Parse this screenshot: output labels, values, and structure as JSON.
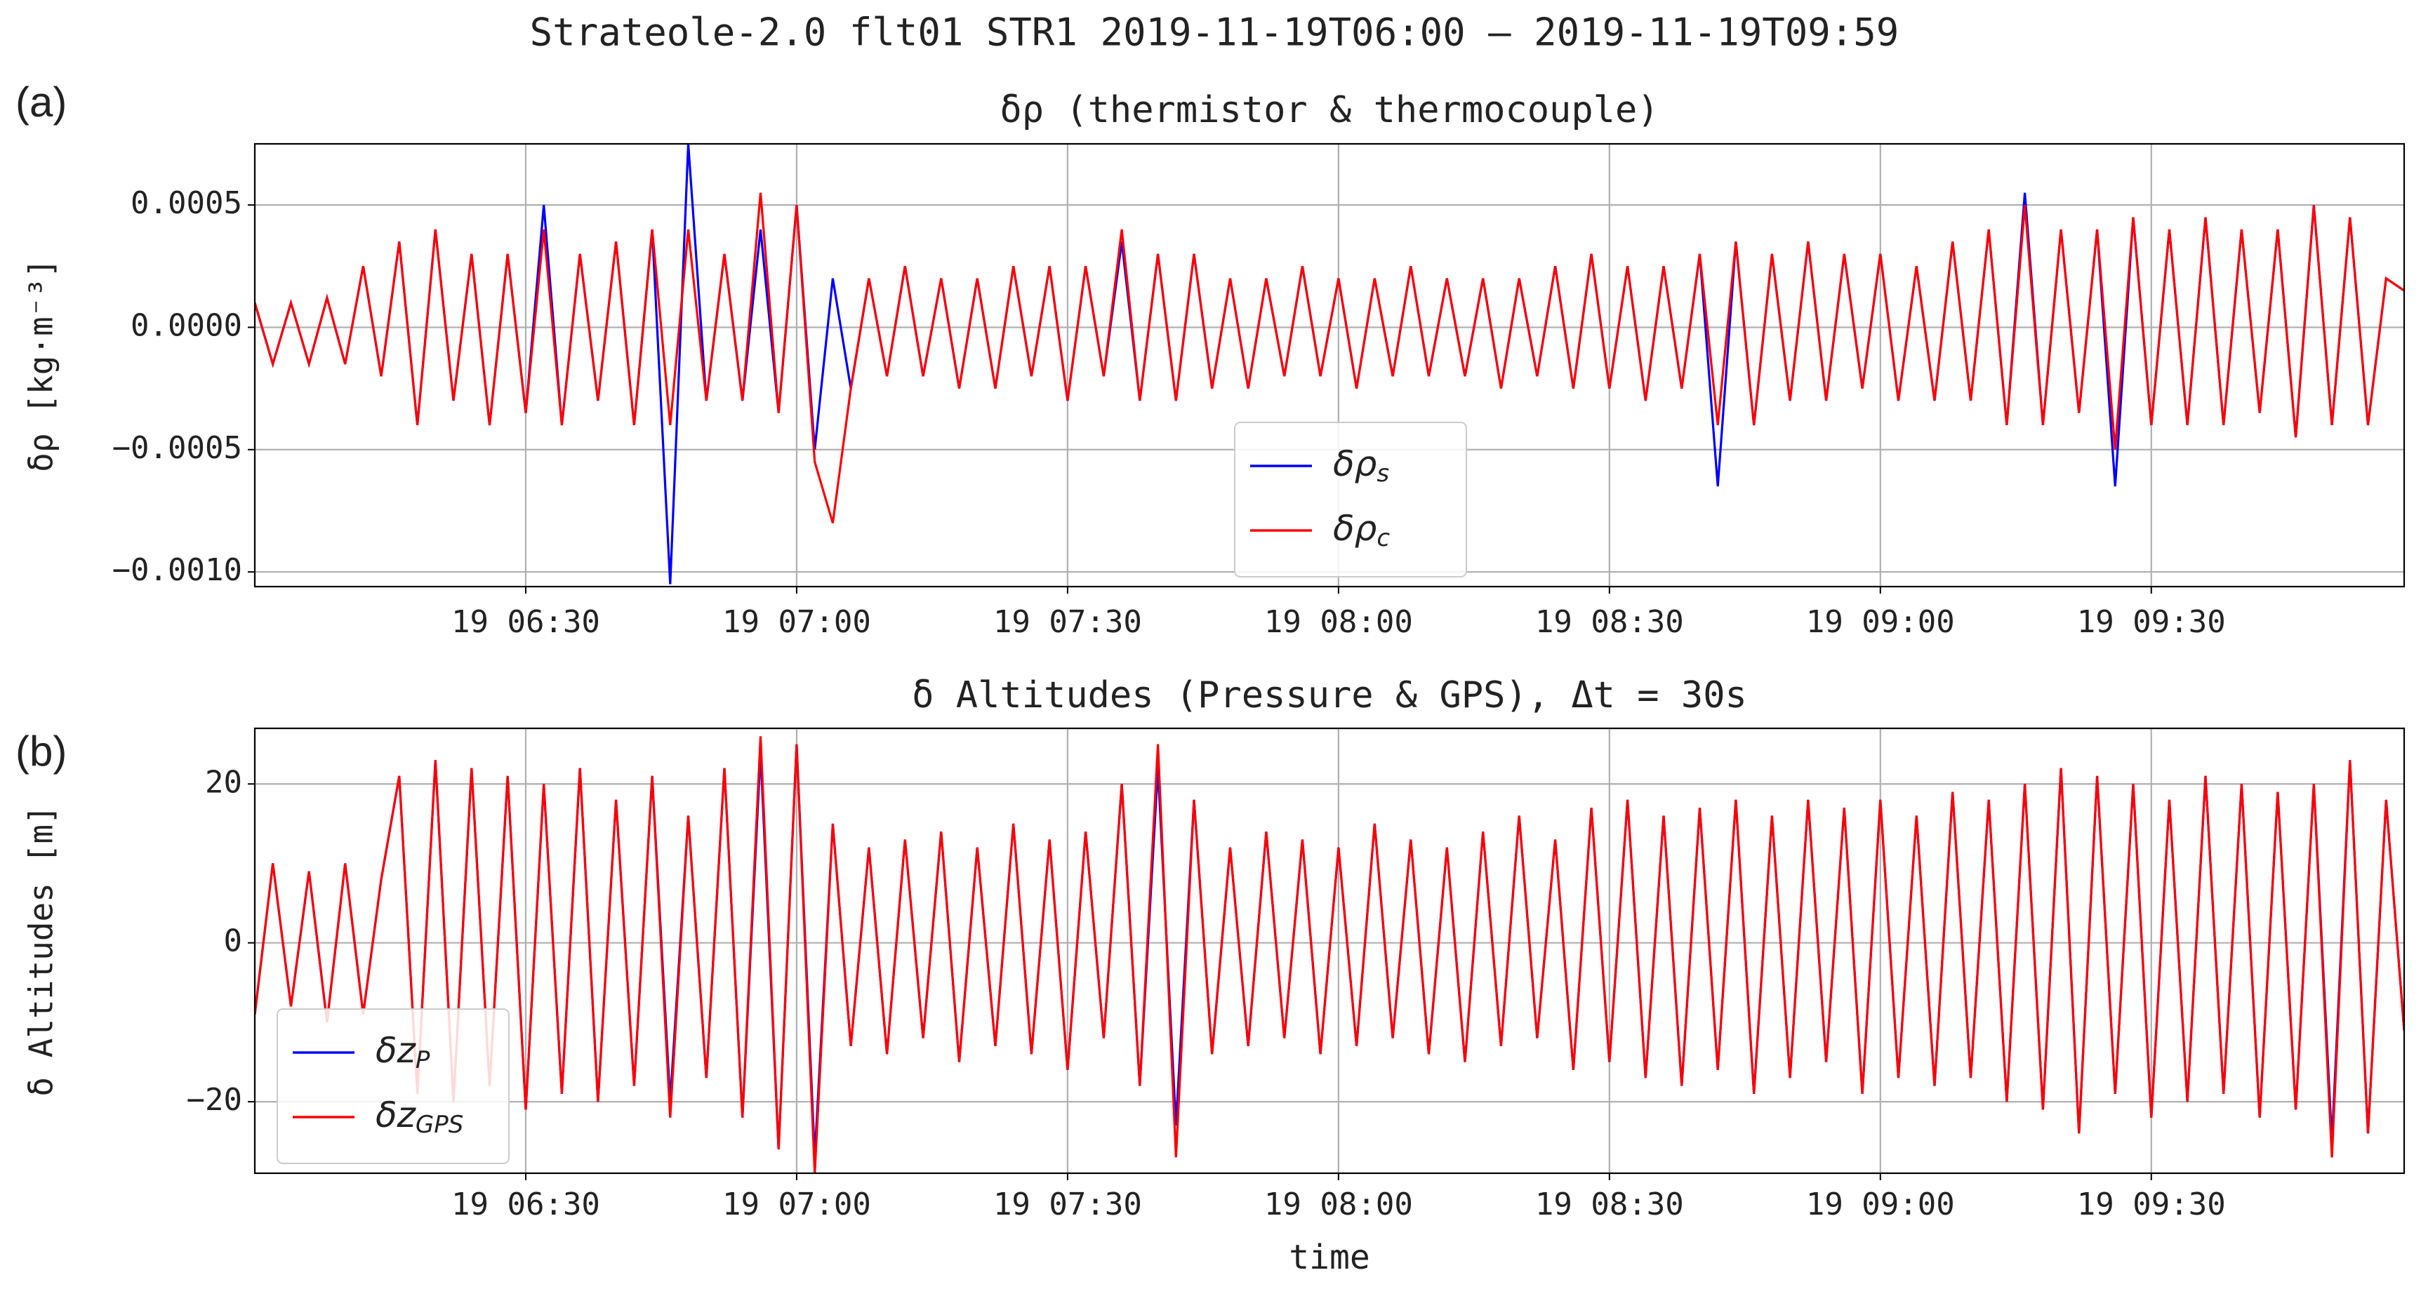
{
  "title": "Strateole-2.0 flt01 STR1  2019-11-19T06:00 – 2019-11-19T09:59",
  "chart_data": [
    {
      "type": "line",
      "panel_label": "(a)",
      "title": "δρ (thermistor & thermocouple)",
      "y_label": "δρ [kg·m⁻³]",
      "grid": true,
      "legend": "lower center",
      "xlim": [
        0,
        238
      ],
      "xticks": [
        {
          "value": 30,
          "label": "19 06:30"
        },
        {
          "value": 60,
          "label": "19 07:00"
        },
        {
          "value": 90,
          "label": "19 07:30"
        },
        {
          "value": 120,
          "label": "19 08:00"
        },
        {
          "value": 150,
          "label": "19 08:30"
        },
        {
          "value": 180,
          "label": "19 09:00"
        },
        {
          "value": 210,
          "label": "19 09:30"
        }
      ],
      "ylim": [
        -0.00106,
        0.00075
      ],
      "yticks": [
        {
          "value": -0.001,
          "label": "−0.0010"
        },
        {
          "value": -0.0005,
          "label": "−0.0005"
        },
        {
          "value": 0,
          "label": "0.0000"
        },
        {
          "value": 0.0005,
          "label": "0.0005"
        }
      ],
      "x": [
        0,
        2,
        4,
        6,
        8,
        10,
        12,
        14,
        16,
        18,
        20,
        22,
        24,
        26,
        28,
        30,
        32,
        34,
        36,
        38,
        40,
        42,
        44,
        46,
        48,
        50,
        52,
        54,
        56,
        58,
        60,
        62,
        64,
        66,
        68,
        70,
        72,
        74,
        76,
        78,
        80,
        82,
        84,
        86,
        88,
        90,
        92,
        94,
        96,
        98,
        100,
        102,
        104,
        106,
        108,
        110,
        112,
        114,
        116,
        118,
        120,
        122,
        124,
        126,
        128,
        130,
        132,
        134,
        136,
        138,
        140,
        142,
        144,
        146,
        148,
        150,
        152,
        154,
        156,
        158,
        160,
        162,
        164,
        166,
        168,
        170,
        172,
        174,
        176,
        178,
        180,
        182,
        184,
        186,
        188,
        190,
        192,
        194,
        196,
        198,
        200,
        202,
        204,
        206,
        208,
        210,
        212,
        214,
        216,
        218,
        220,
        222,
        224,
        226,
        228,
        230,
        232,
        234,
        236,
        238
      ],
      "series": [
        {
          "name": "δρ_s",
          "color": "#0000ff",
          "values": [
            0.0001,
            -0.00015,
            0.0001,
            -0.00015,
            0.00012,
            -0.00015,
            0.00025,
            -0.0002,
            0.00035,
            -0.0004,
            0.0004,
            -0.0003,
            0.0003,
            -0.0004,
            0.0003,
            -0.00035,
            0.0005,
            -0.0004,
            0.0003,
            -0.0003,
            0.00035,
            -0.0004,
            0.0004,
            -0.00105,
            0.00075,
            -0.0003,
            0.0003,
            -0.0003,
            0.0004,
            -0.00035,
            0.0005,
            -0.0005,
            0.0002,
            -0.00025,
            0.0002,
            -0.0002,
            0.00025,
            -0.0002,
            0.0002,
            -0.00025,
            0.0002,
            -0.00025,
            0.00025,
            -0.0002,
            0.00025,
            -0.0003,
            0.00025,
            -0.0002,
            0.00035,
            -0.0003,
            0.0003,
            -0.0003,
            0.0003,
            -0.00025,
            0.0002,
            -0.00025,
            0.0002,
            -0.0002,
            0.00025,
            -0.0002,
            0.0002,
            -0.00025,
            0.0002,
            -0.0002,
            0.00025,
            -0.0002,
            0.0002,
            -0.0002,
            0.0002,
            -0.00025,
            0.0002,
            -0.0002,
            0.00025,
            -0.00025,
            0.0003,
            -0.00025,
            0.00025,
            -0.0003,
            0.00025,
            -0.00025,
            0.0003,
            -0.00065,
            0.00035,
            -0.0004,
            0.0003,
            -0.0003,
            0.00035,
            -0.0003,
            0.0003,
            -0.00025,
            0.0003,
            -0.0003,
            0.00025,
            -0.0003,
            0.00035,
            -0.0003,
            0.0004,
            -0.0004,
            0.00055,
            -0.0004,
            0.0004,
            -0.00035,
            0.0004,
            -0.00065,
            0.00045,
            -0.0004,
            0.0004,
            -0.0004,
            0.00045,
            -0.0004,
            0.0004,
            -0.00035,
            0.0004,
            -0.00045,
            0.0005,
            -0.0004,
            0.00045,
            -0.0004,
            0.0002,
            0.00015
          ]
        },
        {
          "name": "δρ_c",
          "color": "#ff0000",
          "values": [
            0.0001,
            -0.00015,
            0.0001,
            -0.00015,
            0.00012,
            -0.00015,
            0.00025,
            -0.0002,
            0.00035,
            -0.0004,
            0.0004,
            -0.0003,
            0.0003,
            -0.0004,
            0.0003,
            -0.00035,
            0.0004,
            -0.0004,
            0.0003,
            -0.0003,
            0.00035,
            -0.0004,
            0.0004,
            -0.0004,
            0.0004,
            -0.0003,
            0.0003,
            -0.0003,
            0.00055,
            -0.00035,
            0.0005,
            -0.00055,
            -0.0008,
            -0.00025,
            0.0002,
            -0.0002,
            0.00025,
            -0.0002,
            0.0002,
            -0.00025,
            0.0002,
            -0.00025,
            0.00025,
            -0.0002,
            0.00025,
            -0.0003,
            0.00025,
            -0.0002,
            0.0004,
            -0.0003,
            0.0003,
            -0.0003,
            0.0003,
            -0.00025,
            0.0002,
            -0.00025,
            0.0002,
            -0.0002,
            0.00025,
            -0.0002,
            0.0002,
            -0.00025,
            0.0002,
            -0.0002,
            0.00025,
            -0.0002,
            0.0002,
            -0.0002,
            0.0002,
            -0.00025,
            0.0002,
            -0.0002,
            0.00025,
            -0.00025,
            0.0003,
            -0.00025,
            0.00025,
            -0.0003,
            0.00025,
            -0.00025,
            0.0003,
            -0.0004,
            0.00035,
            -0.0004,
            0.0003,
            -0.0003,
            0.00035,
            -0.0003,
            0.0003,
            -0.00025,
            0.0003,
            -0.0003,
            0.00025,
            -0.0003,
            0.00035,
            -0.0003,
            0.0004,
            -0.0004,
            0.0005,
            -0.0004,
            0.0004,
            -0.00035,
            0.0004,
            -0.0005,
            0.00045,
            -0.0004,
            0.0004,
            -0.0004,
            0.00045,
            -0.0004,
            0.0004,
            -0.00035,
            0.0004,
            -0.00045,
            0.0005,
            -0.0004,
            0.00045,
            -0.0004,
            0.0002,
            0.00015
          ]
        }
      ]
    },
    {
      "type": "line",
      "panel_label": "(b)",
      "title": "δ Altitudes (Pressure & GPS),  Δt = 30s",
      "y_label": "δ Altitudes [m]",
      "x_label": "time",
      "grid": true,
      "legend": "lower left",
      "xlim": [
        0,
        238
      ],
      "xticks": [
        {
          "value": 30,
          "label": "19 06:30"
        },
        {
          "value": 60,
          "label": "19 07:00"
        },
        {
          "value": 90,
          "label": "19 07:30"
        },
        {
          "value": 120,
          "label": "19 08:00"
        },
        {
          "value": 150,
          "label": "19 08:30"
        },
        {
          "value": 180,
          "label": "19 09:00"
        },
        {
          "value": 210,
          "label": "19 09:30"
        }
      ],
      "ylim": [
        -29,
        27
      ],
      "yticks": [
        {
          "value": -20,
          "label": "−20"
        },
        0,
        20
      ],
      "x": [
        0,
        2,
        4,
        6,
        8,
        10,
        12,
        14,
        16,
        18,
        20,
        22,
        24,
        26,
        28,
        30,
        32,
        34,
        36,
        38,
        40,
        42,
        44,
        46,
        48,
        50,
        52,
        54,
        56,
        58,
        60,
        62,
        64,
        66,
        68,
        70,
        72,
        74,
        76,
        78,
        80,
        82,
        84,
        86,
        88,
        90,
        92,
        94,
        96,
        98,
        100,
        102,
        104,
        106,
        108,
        110,
        112,
        114,
        116,
        118,
        120,
        122,
        124,
        126,
        128,
        130,
        132,
        134,
        136,
        138,
        140,
        142,
        144,
        146,
        148,
        150,
        152,
        154,
        156,
        158,
        160,
        162,
        164,
        166,
        168,
        170,
        172,
        174,
        176,
        178,
        180,
        182,
        184,
        186,
        188,
        190,
        192,
        194,
        196,
        198,
        200,
        202,
        204,
        206,
        208,
        210,
        212,
        214,
        216,
        218,
        220,
        222,
        224,
        226,
        228,
        230,
        232,
        234,
        236,
        238
      ],
      "series": [
        {
          "name": "δz_P",
          "color": "#0000ff",
          "values": [
            -9,
            10,
            -8,
            9,
            -10,
            10,
            -9,
            8,
            21,
            -19,
            23,
            -20,
            22,
            -18,
            21,
            -21,
            20,
            -19,
            22,
            -20,
            18,
            -18,
            21,
            -20,
            16,
            -17,
            22,
            -22,
            24,
            -26,
            25,
            -27,
            15,
            -13,
            12,
            -14,
            13,
            -12,
            14,
            -15,
            12,
            -13,
            15,
            -14,
            13,
            -16,
            14,
            -12,
            20,
            -18,
            22,
            -23,
            18,
            -14,
            12,
            -13,
            14,
            -12,
            13,
            -14,
            12,
            -13,
            15,
            -12,
            13,
            -14,
            12,
            -15,
            14,
            -13,
            16,
            -12,
            13,
            -16,
            17,
            -15,
            18,
            -17,
            16,
            -18,
            17,
            -16,
            18,
            -19,
            16,
            -17,
            18,
            -15,
            17,
            -19,
            18,
            -17,
            16,
            -18,
            19,
            -17,
            18,
            -20,
            20,
            -21,
            22,
            -24,
            21,
            -19,
            20,
            -22,
            18,
            -20,
            21,
            -19,
            20,
            -22,
            19,
            -21,
            20,
            -25,
            23,
            -24,
            18,
            -11
          ]
        },
        {
          "name": "δz_GPS",
          "color": "#ff0000",
          "values": [
            -9,
            10,
            -8,
            9,
            -10,
            10,
            -9,
            8,
            21,
            -19,
            23,
            -20,
            22,
            -18,
            21,
            -21,
            20,
            -19,
            22,
            -20,
            18,
            -18,
            21,
            -22,
            16,
            -17,
            22,
            -22,
            26,
            -26,
            25,
            -29,
            15,
            -13,
            12,
            -14,
            13,
            -12,
            14,
            -15,
            12,
            -13,
            15,
            -14,
            13,
            -16,
            14,
            -12,
            20,
            -18,
            25,
            -27,
            18,
            -14,
            12,
            -13,
            14,
            -12,
            13,
            -14,
            12,
            -13,
            15,
            -12,
            13,
            -14,
            12,
            -15,
            14,
            -13,
            16,
            -12,
            13,
            -16,
            17,
            -15,
            18,
            -17,
            16,
            -18,
            17,
            -16,
            18,
            -19,
            16,
            -17,
            18,
            -15,
            17,
            -19,
            18,
            -17,
            16,
            -18,
            19,
            -17,
            18,
            -20,
            20,
            -21,
            22,
            -24,
            21,
            -19,
            20,
            -22,
            18,
            -20,
            21,
            -19,
            20,
            -22,
            19,
            -21,
            20,
            -27,
            23,
            -24,
            18,
            -11
          ]
        }
      ]
    }
  ]
}
